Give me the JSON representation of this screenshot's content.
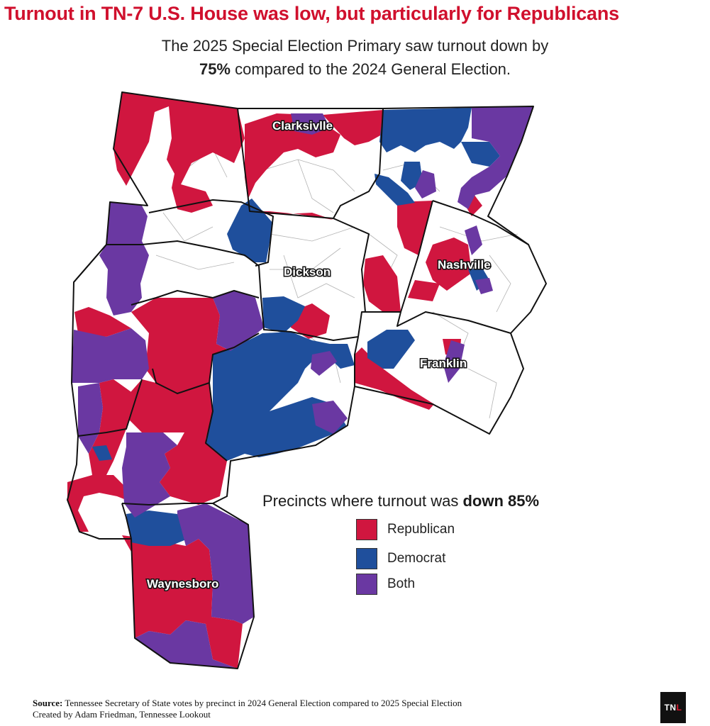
{
  "title": "Turnout in TN-7 U.S. House was low, but particularly for Republicans",
  "subtitle": {
    "line1": "The 2025 Special Election Primary saw turnout down by",
    "highlight": "75%",
    "line2_rest": " compared to the 2024 General Election."
  },
  "colors": {
    "republican": "#d0163f",
    "democrat": "#1f4f9c",
    "both": "#6a38a2",
    "none": "#ffffff",
    "border": "#111111",
    "precinct_line": "#aaaaaa"
  },
  "map_labels": {
    "clarksville": "Clarksivlle",
    "dickson": "Dickson",
    "nashville": "Nashville",
    "franklin": "Franklin",
    "waynesboro": "Waynesboro"
  },
  "legend": {
    "title_prefix": "Precincts where turnout was ",
    "title_bold": "down 85%",
    "items": [
      {
        "label": "Republican",
        "key": "republican"
      },
      {
        "label": "Democrat",
        "key": "democrat"
      },
      {
        "label": "Both",
        "key": "both"
      }
    ]
  },
  "footer": {
    "source_label": "Source:",
    "source_text": " Tennessee Secretary of State votes by precinct in 2024 General Election compared to 2025 Special Election",
    "credit": "Created by Adam Friedman, Tennessee Lookout"
  },
  "logo": {
    "main": "TN",
    "accent": "L"
  }
}
